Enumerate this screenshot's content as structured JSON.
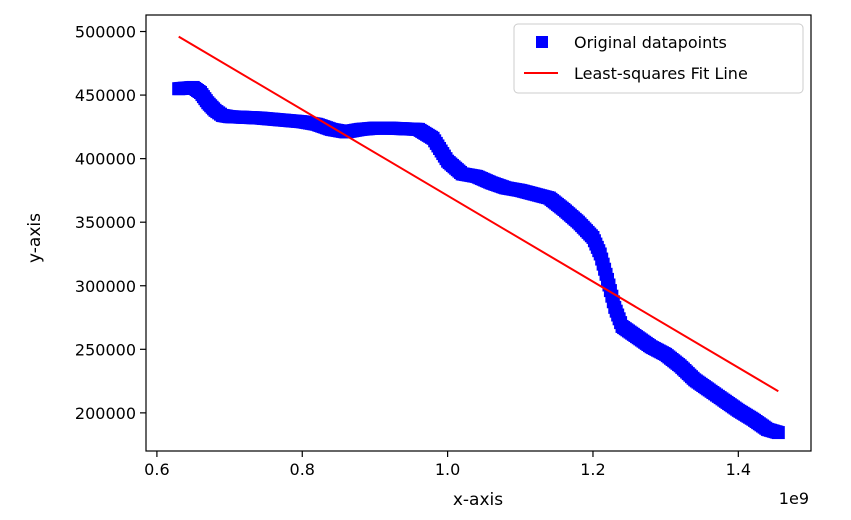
{
  "chart_data": {
    "type": "scatter",
    "xlabel": "x-axis",
    "ylabel": "y-axis",
    "x_offset_label": "1e9",
    "xlim": [
      0.585,
      1.5
    ],
    "ylim": [
      170000,
      513000
    ],
    "x_ticks": [
      0.6,
      0.8,
      1.0,
      1.2,
      1.4
    ],
    "x_tick_labels": [
      "0.6",
      "0.8",
      "1.0",
      "1.2",
      "1.4"
    ],
    "y_ticks": [
      200000,
      250000,
      300000,
      350000,
      400000,
      450000,
      500000
    ],
    "y_tick_labels": [
      "200000",
      "250000",
      "300000",
      "350000",
      "400000",
      "450000",
      "500000"
    ],
    "grid": false,
    "legend_position": "top-right",
    "series": [
      {
        "name": "Original datapoints",
        "kind": "scatter",
        "marker": "square",
        "color": "#0000ff",
        "points": [
          [
            0.63,
            455000
          ],
          [
            0.64,
            455500
          ],
          [
            0.65,
            456000
          ],
          [
            0.66,
            452000
          ],
          [
            0.67,
            444000
          ],
          [
            0.68,
            438000
          ],
          [
            0.69,
            434000
          ],
          [
            0.7,
            433000
          ],
          [
            0.72,
            432500
          ],
          [
            0.74,
            432000
          ],
          [
            0.76,
            431000
          ],
          [
            0.78,
            430000
          ],
          [
            0.8,
            429000
          ],
          [
            0.82,
            427000
          ],
          [
            0.84,
            423000
          ],
          [
            0.86,
            421000
          ],
          [
            0.88,
            423000
          ],
          [
            0.9,
            424000
          ],
          [
            0.92,
            424000
          ],
          [
            0.94,
            423500
          ],
          [
            0.96,
            423000
          ],
          [
            0.98,
            416000
          ],
          [
            1.0,
            398000
          ],
          [
            1.02,
            388000
          ],
          [
            1.04,
            386000
          ],
          [
            1.06,
            381000
          ],
          [
            1.08,
            377000
          ],
          [
            1.1,
            375000
          ],
          [
            1.12,
            372000
          ],
          [
            1.14,
            369000
          ],
          [
            1.16,
            360000
          ],
          [
            1.18,
            350000
          ],
          [
            1.2,
            338000
          ],
          [
            1.21,
            325000
          ],
          [
            1.22,
            305000
          ],
          [
            1.23,
            283000
          ],
          [
            1.24,
            268000
          ],
          [
            1.26,
            260000
          ],
          [
            1.28,
            252000
          ],
          [
            1.3,
            246000
          ],
          [
            1.32,
            237000
          ],
          [
            1.34,
            226000
          ],
          [
            1.36,
            218000
          ],
          [
            1.38,
            210000
          ],
          [
            1.4,
            202000
          ],
          [
            1.42,
            195000
          ],
          [
            1.44,
            187000
          ],
          [
            1.455,
            184500
          ]
        ]
      },
      {
        "name": "Least-squares Fit Line",
        "kind": "line",
        "color": "#ff0000",
        "points": [
          [
            0.63,
            496000
          ],
          [
            1.455,
            217000
          ]
        ]
      }
    ]
  }
}
